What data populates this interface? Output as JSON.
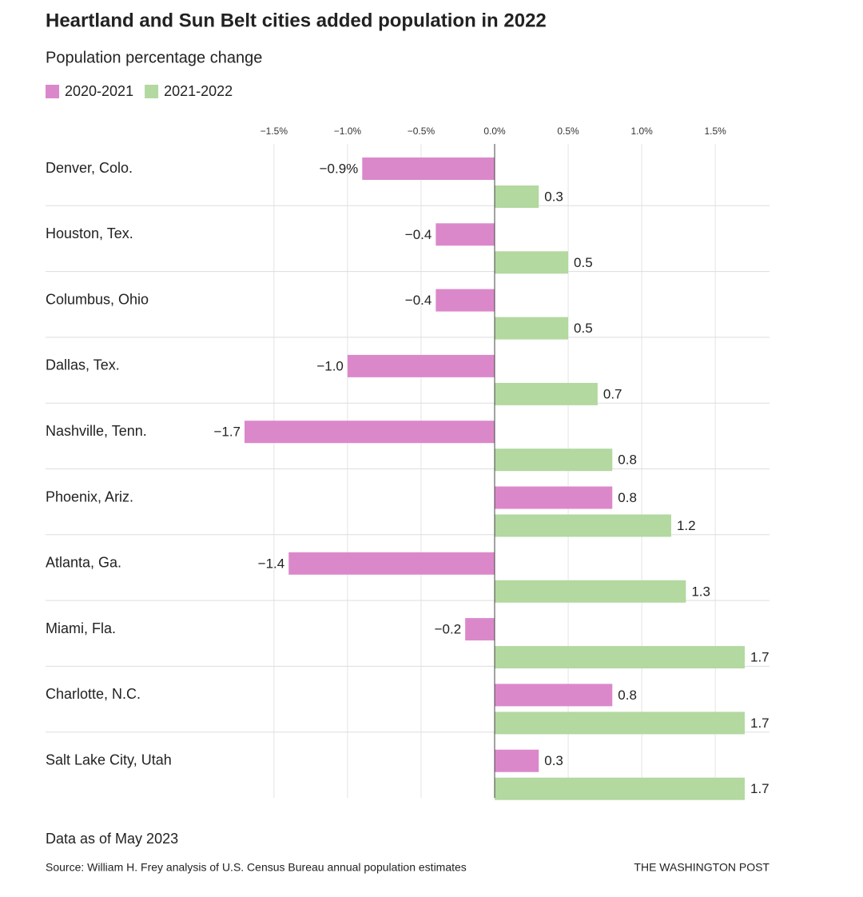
{
  "chart_data": {
    "type": "grouped_hbar",
    "title": "Heartland and Sun Belt cities added population in 2022",
    "subtitle": "Population percentage change",
    "categories": [
      "Denver, Colo.",
      "Houston, Tex.",
      "Columbus, Ohio",
      "Dallas, Tex.",
      "Nashville, Tenn.",
      "Phoenix, Ariz.",
      "Atlanta, Ga.",
      "Miami, Fla.",
      "Charlotte, N.C.",
      "Salt Lake City, Utah"
    ],
    "series": [
      {
        "name": "2020-2021",
        "color": "#db88cb",
        "values": [
          -0.9,
          -0.4,
          -0.4,
          -1.0,
          -1.7,
          0.8,
          -1.4,
          -0.2,
          0.8,
          0.3
        ],
        "value_labels": [
          "−0.9%",
          "−0.4",
          "−0.4",
          "−1.0",
          "−1.7",
          "0.8",
          "−1.4",
          "−0.2",
          "0.8",
          "0.3"
        ]
      },
      {
        "name": "2021-2022",
        "color": "#b3d8a0",
        "values": [
          0.3,
          0.5,
          0.5,
          0.7,
          0.8,
          1.2,
          1.3,
          1.7,
          1.7,
          1.7
        ]
      }
    ],
    "xlim": [
      -1.7,
      1.7
    ],
    "xticks": [
      {
        "value": -1.5,
        "label": "−1.5%"
      },
      {
        "value": -1.0,
        "label": "−1.0%"
      },
      {
        "value": -0.5,
        "label": "−0.5%"
      },
      {
        "value": 0,
        "label": "0.0%"
      },
      {
        "value": 0.5,
        "label": "0.5%"
      },
      {
        "value": 1.0,
        "label": "1.0%"
      },
      {
        "value": 1.5,
        "label": "1.5%"
      }
    ],
    "grid": true,
    "legend": "top-left",
    "note": "Data as of May 2023",
    "source": "Source: William H. Frey analysis of U.S. Census Bureau annual population estimates",
    "credit": "THE WASHINGTON POST"
  }
}
